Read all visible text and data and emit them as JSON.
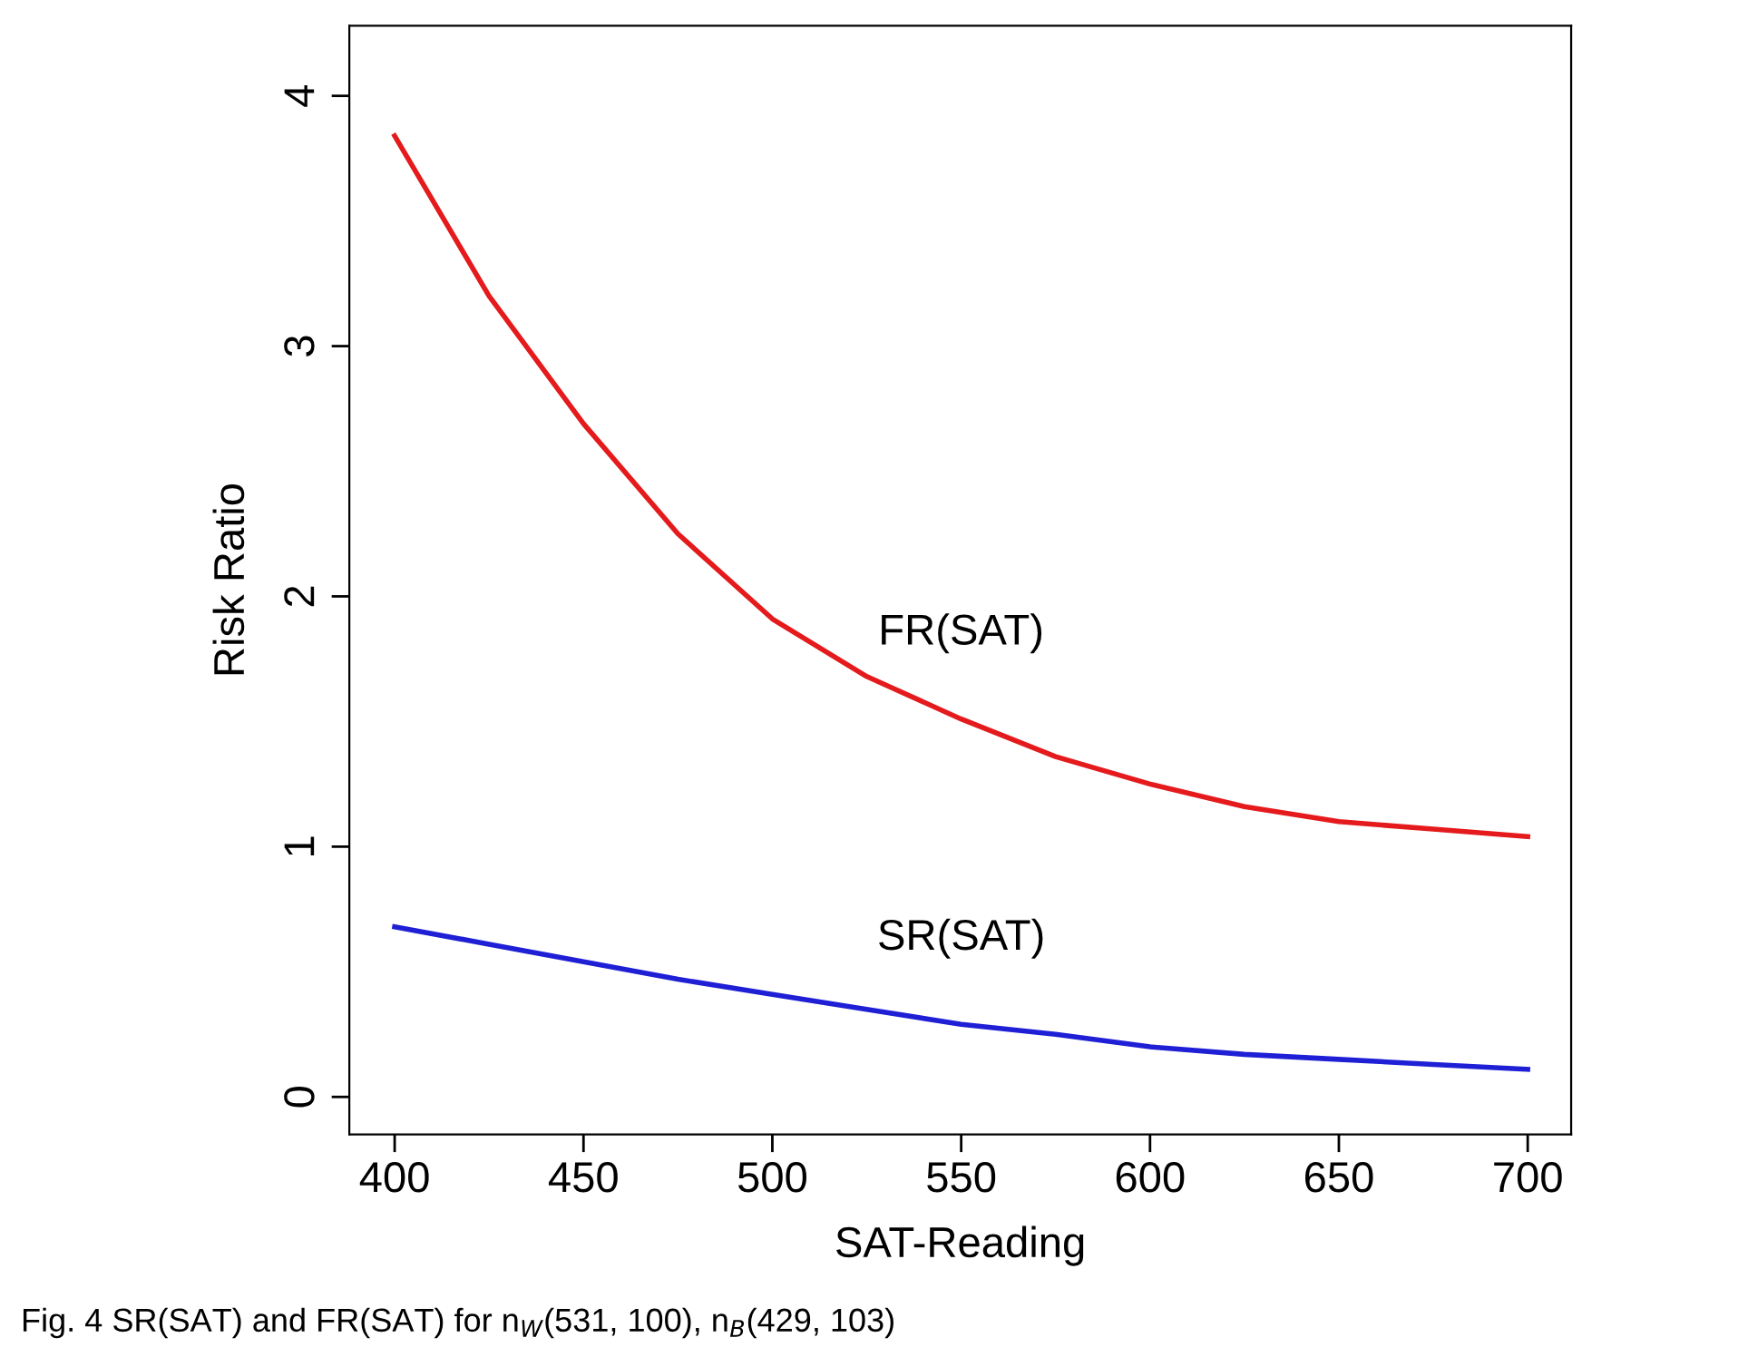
{
  "chart_data": {
    "type": "line",
    "xlabel": "SAT-Reading",
    "ylabel": "Risk Ratio",
    "x": [
      400,
      425,
      450,
      475,
      500,
      525,
      550,
      575,
      600,
      625,
      650,
      675,
      700
    ],
    "series": [
      {
        "name": "FR(SAT)",
        "color": "#e41a1c",
        "values": [
          3.84,
          3.2,
          2.69,
          2.25,
          1.91,
          1.68,
          1.51,
          1.36,
          1.25,
          1.16,
          1.1,
          1.07,
          1.04
        ]
      },
      {
        "name": "SR(SAT)",
        "color": "#1f1fd6",
        "values": [
          0.68,
          0.61,
          0.54,
          0.47,
          0.41,
          0.35,
          0.29,
          0.25,
          0.2,
          0.17,
          0.15,
          0.13,
          0.11
        ]
      }
    ],
    "xlim": [
      388,
      711.5
    ],
    "ylim": [
      -0.15,
      4.28
    ],
    "xticks": [
      400,
      450,
      500,
      550,
      600,
      650,
      700
    ],
    "yticks": [
      0,
      1,
      2,
      3,
      4
    ],
    "grid": false,
    "legend": false,
    "marker": "none",
    "line_style": "solid",
    "annotations": [
      "Fig. 4 SR(SAT) and FR(SAT) for n$_{W}$(531, 100), n$_{B}$(429, 103)"
    ]
  }
}
